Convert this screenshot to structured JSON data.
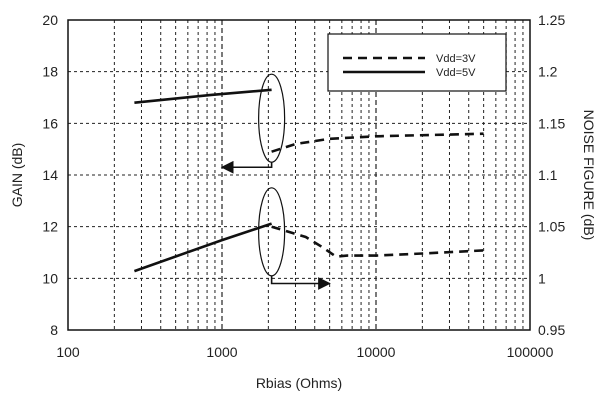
{
  "chart_data": {
    "type": "line",
    "x_scale": "log",
    "xlabel": "Rbias (Ohms)",
    "ylabel_left": "GAIN (dB)",
    "ylabel_right": "NOISE FIGURE (dB)",
    "xlim": [
      100,
      100000
    ],
    "ylim_left": [
      8,
      20
    ],
    "ylim_right": [
      0.95,
      1.25
    ],
    "x_ticks": [
      "100",
      "1000",
      "10000",
      "100000"
    ],
    "y_ticks_left": [
      "8",
      "10",
      "12",
      "14",
      "16",
      "18",
      "20"
    ],
    "y_ticks_right": [
      "0.95",
      "1",
      "1.05",
      "1.1",
      "1.15",
      "1.2",
      "1.25"
    ],
    "grid": true,
    "legend_position": "top-right",
    "legend": [
      {
        "label": "Vdd=3V",
        "style": "dashed"
      },
      {
        "label": "Vdd=5V",
        "style": "solid"
      }
    ],
    "series": [
      {
        "name": "Vdd=5V",
        "style": "solid",
        "axis": "left",
        "x": [
          270,
          850,
          2100
        ],
        "y": [
          16.8,
          17.1,
          17.3
        ]
      },
      {
        "name": "Vdd=3V",
        "style": "dashed",
        "axis": "left",
        "x": [
          2100,
          3000,
          5000,
          10000,
          50000
        ],
        "y": [
          14.9,
          15.2,
          15.4,
          15.5,
          15.6
        ]
      },
      {
        "name": "Vdd=5V",
        "style": "solid",
        "axis": "right",
        "x": [
          270,
          1000,
          2100
        ],
        "y": [
          1.007,
          1.037,
          1.053
        ]
      },
      {
        "name": "Vdd=3V",
        "style": "dashed",
        "axis": "right",
        "x": [
          2100,
          3500,
          4500,
          5500,
          6500,
          10000,
          20000,
          50000
        ],
        "y": [
          1.05,
          1.04,
          1.03,
          1.021,
          1.022,
          1.022,
          1.024,
          1.027
        ]
      }
    ],
    "annotations": [
      {
        "type": "ellipse-arrow",
        "axis": "left",
        "center_x": 2100,
        "center_y": 16.2,
        "arrow_to_x": 1000,
        "arrow_to_y": 14.3
      },
      {
        "type": "ellipse-arrow",
        "axis": "right",
        "center_x": 2100,
        "center_y": 1.045,
        "arrow_to_x": 5000,
        "arrow_to_y": 0.995
      }
    ]
  }
}
